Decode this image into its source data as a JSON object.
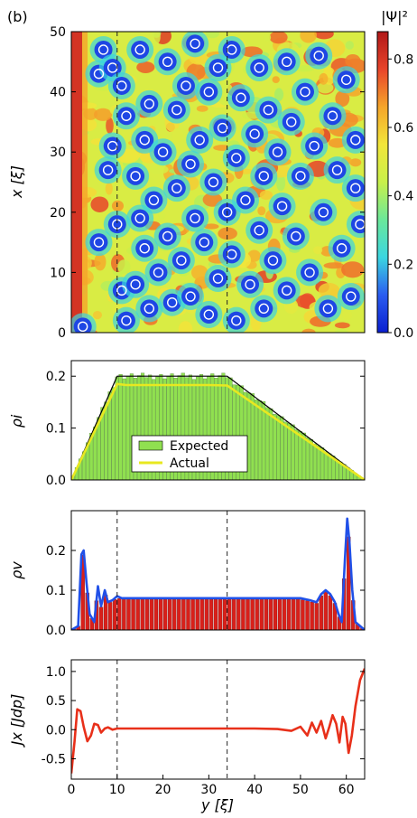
{
  "panel_label": "(b)",
  "colorbar": {
    "label": "|Ψ|²",
    "ticks": [
      "0.0",
      "0.2",
      "0.4",
      "0.6",
      "0.8"
    ],
    "tick_values": [
      0.0,
      0.2,
      0.4,
      0.6,
      0.8
    ],
    "range": [
      0,
      0.88
    ]
  },
  "chart_data": [
    {
      "type": "heatmap",
      "ylabel": "x [ξ]",
      "xlim": [
        0,
        64
      ],
      "ylim": [
        0,
        50
      ],
      "yticks": [
        0,
        10,
        20,
        30,
        40,
        50
      ],
      "dashed_lines_x": [
        10,
        34
      ],
      "colormap": [
        "#0a1fd0",
        "#2a5cf0",
        "#3bd6e0",
        "#6be89a",
        "#c8f04a",
        "#f2e63a",
        "#f5a52a",
        "#e8442a",
        "#b01818"
      ],
      "vortices": [
        [
          2.5,
          1
        ],
        [
          6,
          43
        ],
        [
          6,
          15
        ],
        [
          7,
          47
        ],
        [
          8,
          27
        ],
        [
          9,
          44
        ],
        [
          9,
          31
        ],
        [
          10,
          18
        ],
        [
          11,
          41
        ],
        [
          11,
          7
        ],
        [
          12,
          36
        ],
        [
          12,
          2
        ],
        [
          14,
          26
        ],
        [
          14,
          8
        ],
        [
          15,
          47
        ],
        [
          15,
          19
        ],
        [
          16,
          32
        ],
        [
          16,
          14
        ],
        [
          17,
          38
        ],
        [
          17,
          4
        ],
        [
          18,
          22
        ],
        [
          19,
          10
        ],
        [
          20,
          30
        ],
        [
          21,
          45
        ],
        [
          21,
          16
        ],
        [
          22,
          5
        ],
        [
          23,
          37
        ],
        [
          23,
          24
        ],
        [
          24,
          12
        ],
        [
          25,
          41
        ],
        [
          26,
          28
        ],
        [
          26,
          6
        ],
        [
          27,
          48
        ],
        [
          27,
          19
        ],
        [
          28,
          32
        ],
        [
          29,
          15
        ],
        [
          30,
          40
        ],
        [
          30,
          3
        ],
        [
          31,
          25
        ],
        [
          32,
          44
        ],
        [
          32,
          9
        ],
        [
          33,
          34
        ],
        [
          34,
          20
        ],
        [
          35,
          47
        ],
        [
          35,
          13
        ],
        [
          36,
          29
        ],
        [
          36,
          2
        ],
        [
          37,
          39
        ],
        [
          38,
          22
        ],
        [
          39,
          8
        ],
        [
          40,
          33
        ],
        [
          41,
          44
        ],
        [
          41,
          17
        ],
        [
          42,
          26
        ],
        [
          42,
          4
        ],
        [
          43,
          37
        ],
        [
          44,
          12
        ],
        [
          45,
          30
        ],
        [
          46,
          21
        ],
        [
          47,
          45
        ],
        [
          47,
          7
        ],
        [
          48,
          35
        ],
        [
          49,
          16
        ],
        [
          50,
          26
        ],
        [
          51,
          40
        ],
        [
          52,
          10
        ],
        [
          53,
          31
        ],
        [
          54,
          46
        ],
        [
          55,
          20
        ],
        [
          56,
          4
        ],
        [
          57,
          36
        ],
        [
          58,
          27
        ],
        [
          59,
          14
        ],
        [
          60,
          42
        ],
        [
          61,
          6
        ],
        [
          62,
          32
        ],
        [
          62,
          24
        ],
        [
          63,
          18
        ]
      ]
    },
    {
      "type": "bar",
      "ylabel": "ρi",
      "xlim": [
        0,
        64
      ],
      "ylim": [
        0,
        0.23
      ],
      "yticks": [
        0.0,
        0.1,
        0.2
      ],
      "legend": {
        "placement": "lower-center",
        "entries": [
          "Expected",
          "Actual"
        ]
      },
      "expected_outline": {
        "x": [
          0,
          10,
          34,
          64
        ],
        "y": [
          0,
          0.2,
          0.2,
          0
        ]
      },
      "series": [
        {
          "name": "Expected",
          "color": "#90e050"
        },
        {
          "name": "Actual",
          "color": "#e8e820"
        }
      ],
      "actual_profile": {
        "x": [
          0,
          10,
          12,
          20,
          30,
          34,
          64
        ],
        "y": [
          0,
          0.185,
          0.183,
          0.183,
          0.183,
          0.182,
          0
        ]
      }
    },
    {
      "type": "bar",
      "ylabel": "ρv",
      "xlim": [
        0,
        64
      ],
      "ylim": [
        0,
        0.3
      ],
      "yticks": [
        0.0,
        0.1,
        0.2
      ],
      "dashed_lines_x": [
        10,
        34
      ],
      "bar_color": "#d8201a",
      "line_color": "#2050e8",
      "line_x": [
        0,
        1.5,
        2.2,
        2.7,
        3.3,
        4,
        5,
        5.8,
        6.5,
        7.3,
        8,
        9,
        10,
        11,
        12,
        20,
        30,
        40,
        50,
        52,
        53.5,
        54.5,
        55.5,
        56.5,
        57.5,
        58.3,
        59,
        59.7,
        60.2,
        60.7,
        61.3,
        62,
        64
      ],
      "line_y": [
        0,
        0.01,
        0.19,
        0.2,
        0.12,
        0.04,
        0.02,
        0.11,
        0.06,
        0.1,
        0.07,
        0.075,
        0.085,
        0.08,
        0.08,
        0.08,
        0.08,
        0.08,
        0.08,
        0.075,
        0.07,
        0.09,
        0.1,
        0.09,
        0.07,
        0.04,
        0.02,
        0.18,
        0.28,
        0.22,
        0.1,
        0.02,
        0
      ]
    },
    {
      "type": "line",
      "ylabel": "Jx [Jdp]",
      "xlabel": "y [ξ]",
      "xlim": [
        0,
        64
      ],
      "ylim": [
        -0.85,
        1.2
      ],
      "yticks": [
        -0.5,
        0.0,
        0.5,
        1.0
      ],
      "xticks": [
        0,
        10,
        20,
        30,
        40,
        50,
        60
      ],
      "dashed_lines_x": [
        10,
        34
      ],
      "line_color": "#e8301a",
      "x": [
        0,
        0.7,
        1.3,
        2,
        2.7,
        3.5,
        4.3,
        5,
        5.8,
        6.5,
        7.3,
        8,
        9,
        10,
        20,
        30,
        40,
        45,
        48,
        50,
        51.5,
        52.5,
        53.5,
        54.5,
        55.5,
        56.3,
        57,
        57.8,
        58.5,
        59.2,
        59.8,
        60.5,
        61.2,
        62,
        63,
        64
      ],
      "y": [
        -0.75,
        -0.2,
        0.35,
        0.32,
        0.05,
        -0.2,
        -0.1,
        0.1,
        0.08,
        -0.05,
        0.02,
        0.04,
        0.0,
        0.02,
        0.02,
        0.02,
        0.02,
        0.01,
        -0.02,
        0.05,
        -0.1,
        0.12,
        -0.05,
        0.15,
        -0.15,
        0.05,
        0.25,
        0.1,
        -0.22,
        0.22,
        0.1,
        -0.4,
        -0.1,
        0.4,
        0.85,
        1.05
      ]
    }
  ]
}
